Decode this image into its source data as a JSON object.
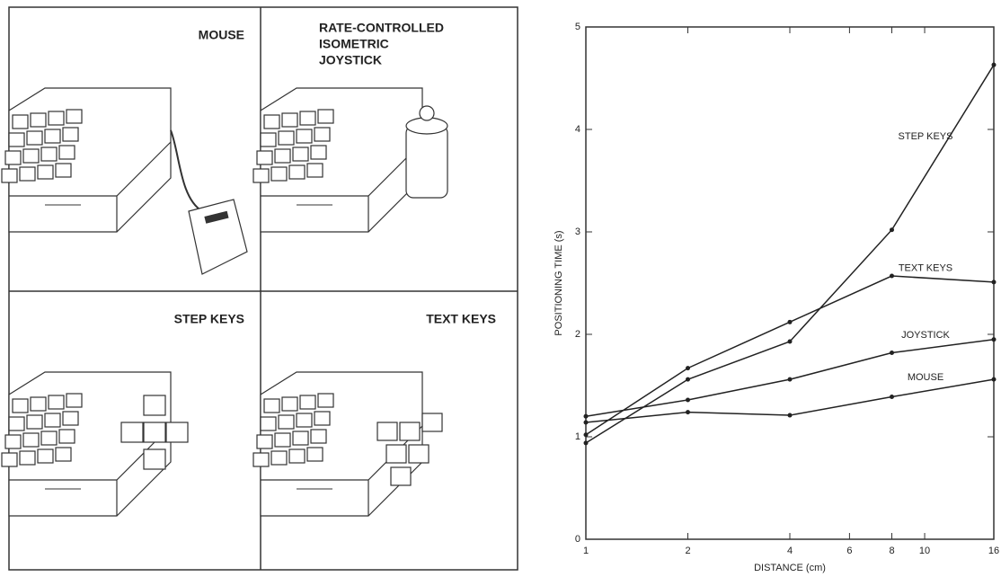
{
  "panels": [
    {
      "label": [
        "MOUSE"
      ]
    },
    {
      "label": [
        "RATE-CONTROLLED",
        "ISOMETRIC",
        "JOYSTICK"
      ]
    },
    {
      "label": [
        "STEP KEYS"
      ]
    },
    {
      "label": [
        "TEXT KEYS"
      ]
    }
  ],
  "chart_data": {
    "type": "line",
    "y_label": "POSITIONING TIME (s)",
    "x_label": "DISTANCE (cm)",
    "xscale": "log",
    "xlim": [
      1,
      16
    ],
    "xticks": [
      1,
      2,
      4,
      6,
      8,
      10,
      16
    ],
    "ylim": [
      0,
      5
    ],
    "yticks": [
      0,
      1,
      2,
      3,
      4,
      5
    ],
    "grid": false,
    "color": "#222222",
    "x": [
      1,
      2,
      4,
      8,
      16
    ],
    "series": [
      {
        "name": "STEP KEYS",
        "color": "#222222",
        "values": [
          0.94,
          1.56,
          1.93,
          3.02,
          4.63
        ]
      },
      {
        "name": "TEXT KEYS",
        "color": "#222222",
        "values": [
          1.02,
          1.67,
          2.12,
          2.57,
          2.51
        ]
      },
      {
        "name": "JOYSTICK",
        "color": "#222222",
        "values": [
          1.2,
          1.36,
          1.56,
          1.82,
          1.95
        ]
      },
      {
        "name": "MOUSE",
        "color": "#222222",
        "values": [
          1.14,
          1.24,
          1.21,
          1.39,
          1.56
        ]
      }
    ]
  }
}
